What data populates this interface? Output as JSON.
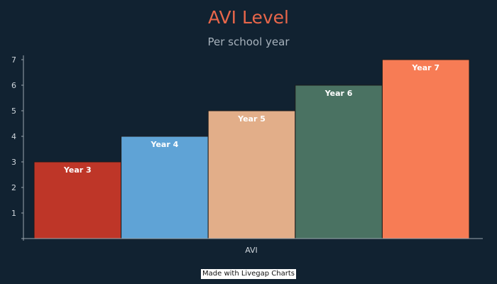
{
  "chart_data": {
    "type": "bar",
    "title": "AVI Level",
    "subtitle": "Per school year",
    "xlabel": "AVI",
    "ylabel": "",
    "ylim": [
      0,
      7
    ],
    "yticks": [
      1,
      2,
      3,
      4,
      5,
      6,
      7
    ],
    "grid": false,
    "legend": "none",
    "series": [
      {
        "name": "Year 3",
        "value": 3,
        "color": "#be3628"
      },
      {
        "name": "Year 4",
        "value": 4,
        "color": "#5fa3d6"
      },
      {
        "name": "Year 5",
        "value": 5,
        "color": "#e2ae89"
      },
      {
        "name": "Year 6",
        "value": 6,
        "color": "#4a7262"
      },
      {
        "name": "Year 7",
        "value": 7,
        "color": "#f77c55"
      }
    ]
  },
  "colors": {
    "background": "#112231",
    "title": "#e8664a",
    "subtitle": "#a7b2bc",
    "axis": "#9aa5ae"
  },
  "footer": {
    "credit": "Made with Livegap Charts"
  }
}
